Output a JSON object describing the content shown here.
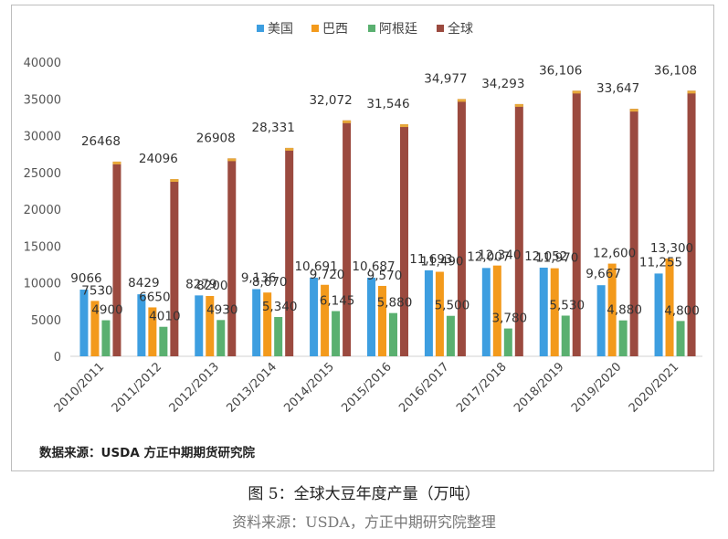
{
  "chart_data": {
    "type": "bar",
    "categories": [
      "2010/2011",
      "2011/2012",
      "2012/2013",
      "2013/2014",
      "2014/2015",
      "2015/2016",
      "2016/2017",
      "2017/2018",
      "2018/2019",
      "2019/2020",
      "2020/2021"
    ],
    "series": [
      {
        "name": "美国",
        "color": "#3d9ee0",
        "values": [
          9066,
          8429,
          8279,
          9136,
          10691,
          10687,
          11693,
          12007,
          12052,
          9667,
          11255
        ],
        "labels": [
          "9066",
          "8429",
          "8279",
          "9,136",
          "10,691",
          "10,687",
          "11,693",
          "12,007",
          "12,052",
          "9,667",
          "11,255"
        ]
      },
      {
        "name": "巴西",
        "color": "#f39a1c",
        "values": [
          7530,
          6650,
          8200,
          8670,
          9720,
          9570,
          11490,
          12340,
          11970,
          12600,
          13300
        ],
        "labels": [
          "7530",
          "6650",
          "8200",
          "8,670",
          "9,720",
          "9,570",
          "11,490",
          "12,340",
          "11,970",
          "12,600",
          "13,300"
        ]
      },
      {
        "name": "阿根廷",
        "color": "#5ab070",
        "values": [
          4900,
          4010,
          4930,
          5340,
          6145,
          5880,
          5500,
          3780,
          5530,
          4880,
          4800
        ],
        "labels": [
          "4900",
          "4010",
          "4930",
          "5,340",
          "6,145",
          "5,880",
          "5,500",
          "3,780",
          "5,530",
          "4,880",
          "4,800"
        ]
      },
      {
        "name": "全球",
        "color": "#9b4a3f",
        "values": [
          26468,
          24096,
          26908,
          28331,
          32072,
          31546,
          34977,
          34293,
          36106,
          33647,
          36108
        ],
        "labels": [
          "26468",
          "24096",
          "26908",
          "28,331",
          "32,072",
          "31,546",
          "34,977",
          "34,293",
          "36,106",
          "33,647",
          "36,108"
        ]
      }
    ],
    "yticks": [
      "0",
      "5000",
      "10000",
      "15000",
      "20000",
      "25000",
      "30000",
      "35000",
      "40000"
    ],
    "ylim": [
      0,
      40000
    ],
    "legend_position": "top"
  },
  "source_note": "数据来源：USDA 方正中期期货研究院",
  "figure_title": "图 5：全球大豆年度产量（万吨）",
  "figure_source": "资料来源：USDA，方正中期研究院整理"
}
